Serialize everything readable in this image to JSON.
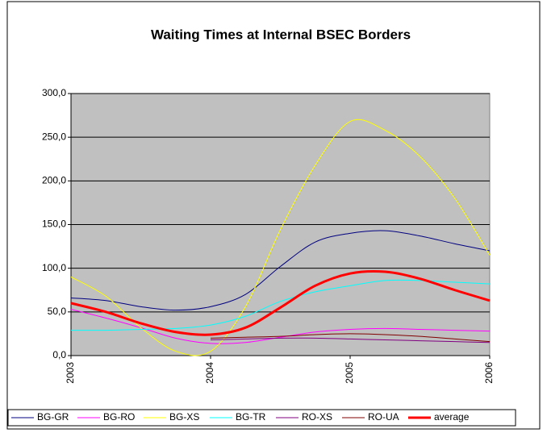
{
  "chart_data": {
    "type": "line",
    "title": "Waiting Times at Internal BSEC Borders",
    "x": [
      2003,
      2003.25,
      2003.5,
      2003.75,
      2004,
      2004.25,
      2004.5,
      2004.75,
      2005,
      2005.25,
      2005.5,
      2005.75,
      2006
    ],
    "xlim": [
      2003,
      2006
    ],
    "xticks": [
      2003,
      2004,
      2005,
      2006
    ],
    "ylim": [
      0,
      300
    ],
    "yticks": [
      {
        "value": 0,
        "label": "0,0"
      },
      {
        "value": 50,
        "label": "50,0"
      },
      {
        "value": 100,
        "label": "100,0"
      },
      {
        "value": 150,
        "label": "150,0"
      },
      {
        "value": 200,
        "label": "200,0"
      },
      {
        "value": 250,
        "label": "250,0"
      },
      {
        "value": 300,
        "label": "300,0"
      }
    ],
    "grid": true,
    "legend": "bottom",
    "series": [
      {
        "name": "BG-GR",
        "color": "#000080",
        "values": [
          66,
          63,
          56,
          52,
          56,
          70,
          102,
          130,
          140,
          143,
          137,
          128,
          120
        ]
      },
      {
        "name": "BG-RO",
        "color": "#ff00ff",
        "values": [
          53,
          43,
          32,
          20,
          14,
          15,
          21,
          27,
          30,
          31,
          30,
          29,
          28
        ]
      },
      {
        "name": "BG-XS",
        "color": "#ffff00",
        "values": [
          90,
          68,
          32,
          5,
          5,
          56,
          144,
          218,
          268,
          258,
          228,
          180,
          115
        ]
      },
      {
        "name": "BG-TR",
        "color": "#00ffff",
        "values": [
          29,
          29,
          30,
          31,
          35,
          45,
          62,
          73,
          80,
          86,
          86,
          84,
          82
        ]
      },
      {
        "name": "RO-XS",
        "color": "#800080",
        "values": [
          null,
          null,
          null,
          null,
          18,
          19,
          20,
          20,
          19,
          18,
          17,
          16,
          15
        ]
      },
      {
        "name": "RO-UA",
        "color": "#800000",
        "values": [
          null,
          null,
          null,
          null,
          20,
          21,
          22,
          24,
          25,
          24,
          22,
          19,
          16
        ]
      },
      {
        "name": "average",
        "color": "#ff0000",
        "width": 3,
        "values": [
          60,
          50,
          37,
          27,
          24,
          32,
          55,
          80,
          94,
          96,
          88,
          75,
          63
        ]
      }
    ]
  }
}
